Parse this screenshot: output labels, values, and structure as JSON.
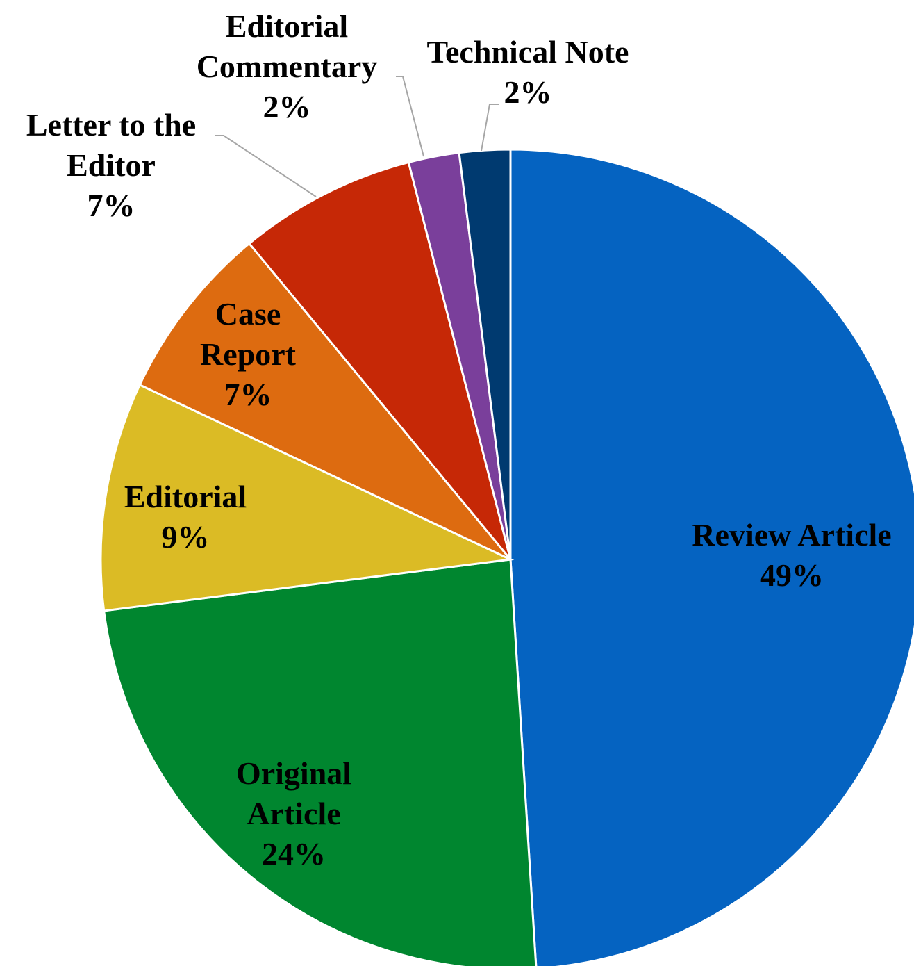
{
  "chart_data": {
    "type": "pie",
    "categories": [
      "Review Article",
      "Original Article",
      "Editorial",
      "Case Report",
      "Letter to the Editor",
      "Editorial Commentary",
      "Technical Note"
    ],
    "values": [
      49,
      24,
      9,
      7,
      7,
      2,
      2
    ],
    "value_labels": [
      "49%",
      "24%",
      "9%",
      "7%",
      "7%",
      "2%",
      "2%"
    ],
    "colors": [
      "#0563c1",
      "#00862f",
      "#dbbb25",
      "#dd6b10",
      "#c62806",
      "#7a3f9b",
      "#003a70"
    ]
  }
}
